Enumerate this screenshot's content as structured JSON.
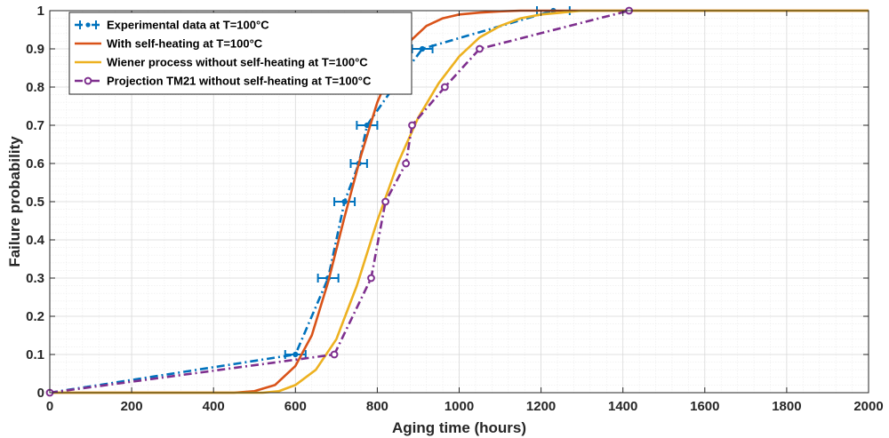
{
  "chart_data": {
    "type": "line",
    "xlabel": "Aging time (hours)",
    "ylabel": "Failure probability",
    "xlim": [
      0,
      2000
    ],
    "ylim": [
      0,
      1
    ],
    "x_ticks": [
      0,
      200,
      400,
      600,
      800,
      1000,
      1200,
      1400,
      1600,
      1800,
      2000
    ],
    "y_ticks": [
      0,
      0.1,
      0.2,
      0.3,
      0.4,
      0.5,
      0.6,
      0.7,
      0.8,
      0.9,
      1
    ],
    "x_tick_labels": [
      "0",
      "200",
      "400",
      "600",
      "800",
      "1000",
      "1200",
      "1400",
      "1600",
      "1800",
      "2000"
    ],
    "y_tick_labels": [
      "0",
      "0.1",
      "0.2",
      "0.3",
      "0.4",
      "0.5",
      "0.6",
      "0.7",
      "0.8",
      "0.9",
      "1"
    ],
    "grid": true,
    "minor_grid": true,
    "legend_position": "top-left",
    "series": [
      {
        "name": "Experimental data at T=100°C",
        "style": "dash-dot",
        "marker": "dot",
        "color": "#0072BD",
        "error_bars": "horizontal",
        "x": [
          0,
          600,
          680,
          720,
          755,
          775,
          840,
          910,
          1230
        ],
        "y": [
          0,
          0.1,
          0.3,
          0.5,
          0.6,
          0.7,
          0.8,
          0.9,
          1.0
        ],
        "x_error": [
          0,
          25,
          25,
          25,
          20,
          25,
          25,
          25,
          40
        ]
      },
      {
        "name": "With self-heating at T=100°C",
        "style": "solid",
        "marker": "none",
        "color": "#D95319",
        "x": [
          0,
          450,
          500,
          550,
          600,
          640,
          680,
          720,
          760,
          800,
          840,
          880,
          920,
          960,
          1000,
          1050,
          1100,
          1150,
          1200,
          1300,
          1400,
          2000
        ],
        "y": [
          0,
          0,
          0.004,
          0.02,
          0.07,
          0.15,
          0.29,
          0.46,
          0.62,
          0.76,
          0.86,
          0.92,
          0.96,
          0.98,
          0.99,
          0.995,
          0.998,
          1.0,
          1.0,
          1.0,
          1.0,
          1.0
        ]
      },
      {
        "name": "Wiener process without self-heating at T=100°C",
        "style": "solid",
        "marker": "none",
        "color": "#EDB120",
        "x": [
          0,
          520,
          560,
          600,
          650,
          700,
          750,
          800,
          850,
          900,
          950,
          1000,
          1050,
          1100,
          1150,
          1200,
          1250,
          1300,
          1400,
          2000
        ],
        "y": [
          0,
          0,
          0.004,
          0.02,
          0.06,
          0.14,
          0.28,
          0.45,
          0.6,
          0.72,
          0.81,
          0.88,
          0.93,
          0.96,
          0.98,
          0.99,
          0.995,
          1.0,
          1.0,
          1.0
        ],
        "note": ""
      },
      {
        "name": "Projection TM21 without self-heating at T=100°C",
        "style": "dash-dot",
        "marker": "circle",
        "color": "#7E2F8E",
        "x": [
          0,
          695,
          785,
          820,
          870,
          885,
          965,
          1050,
          1415
        ],
        "y": [
          0,
          0.1,
          0.3,
          0.5,
          0.6,
          0.7,
          0.8,
          0.9,
          1.0
        ]
      }
    ]
  }
}
